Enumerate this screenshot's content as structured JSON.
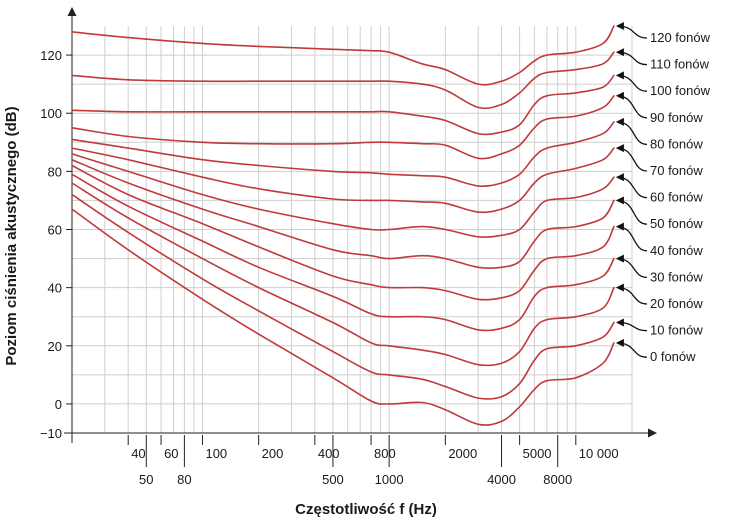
{
  "chart_data": {
    "type": "line",
    "title": "",
    "xlabel": "Częstotliwość f (Hz)",
    "ylabel": "Poziom ciśnienia akustycznego (dB)",
    "xscale": "log",
    "xlim": [
      20,
      20000
    ],
    "ylim": [
      -10,
      130
    ],
    "x_ticks": [
      {
        "value": 40,
        "label": "40",
        "row": "upper"
      },
      {
        "value": 50,
        "label": "50",
        "row": "lower"
      },
      {
        "value": 60,
        "label": "60",
        "row": "upper"
      },
      {
        "value": 80,
        "label": "80",
        "row": "lower"
      },
      {
        "value": 100,
        "label": "100",
        "row": "upper"
      },
      {
        "value": 200,
        "label": "200",
        "row": "upper"
      },
      {
        "value": 400,
        "label": "400",
        "row": "upper"
      },
      {
        "value": 500,
        "label": "500",
        "row": "lower"
      },
      {
        "value": 800,
        "label": "800",
        "row": "upper"
      },
      {
        "value": 1000,
        "label": "1000",
        "row": "lower"
      },
      {
        "value": 2000,
        "label": "2000",
        "row": "upper"
      },
      {
        "value": 4000,
        "label": "4000",
        "row": "lower"
      },
      {
        "value": 5000,
        "label": "5000",
        "row": "upper"
      },
      {
        "value": 8000,
        "label": "8000",
        "row": "lower"
      },
      {
        "value": 10000,
        "label": "10 000",
        "row": "upper"
      }
    ],
    "y_ticks": [
      {
        "value": -10,
        "label": "−10"
      },
      {
        "value": 0,
        "label": "0"
      },
      {
        "value": 20,
        "label": "20"
      },
      {
        "value": 40,
        "label": "40"
      },
      {
        "value": 60,
        "label": "60"
      },
      {
        "value": 80,
        "label": "80"
      },
      {
        "value": 100,
        "label": "100"
      },
      {
        "value": 120,
        "label": "120"
      }
    ],
    "x_gridlines": [
      30,
      40,
      50,
      60,
      70,
      80,
      90,
      100,
      200,
      300,
      400,
      500,
      600,
      700,
      800,
      900,
      1000,
      2000,
      3000,
      4000,
      5000,
      6000,
      7000,
      8000,
      9000,
      10000,
      20000
    ],
    "y_gridlines": [
      -10,
      0,
      10,
      20,
      30,
      40,
      50,
      60,
      70,
      80,
      90,
      100,
      110,
      120
    ],
    "series": [
      {
        "name": "0 fonów",
        "label": "0 fonów",
        "points": [
          [
            20,
            67
          ],
          [
            40,
            53
          ],
          [
            100,
            36
          ],
          [
            200,
            24
          ],
          [
            500,
            9
          ],
          [
            800,
            1
          ],
          [
            1000,
            0
          ],
          [
            1500,
            0.5
          ],
          [
            2000,
            -2
          ],
          [
            3000,
            -7
          ],
          [
            4000,
            -6
          ],
          [
            5000,
            -1
          ],
          [
            6000,
            5
          ],
          [
            7000,
            8
          ],
          [
            10000,
            9
          ],
          [
            14000,
            14
          ],
          [
            16000,
            21
          ]
        ]
      },
      {
        "name": "10 fonów",
        "label": "10 fonów",
        "points": [
          [
            20,
            72
          ],
          [
            40,
            59
          ],
          [
            100,
            43
          ],
          [
            200,
            32
          ],
          [
            500,
            18
          ],
          [
            800,
            11
          ],
          [
            1000,
            10
          ],
          [
            1500,
            8.5
          ],
          [
            2000,
            6
          ],
          [
            3000,
            2
          ],
          [
            4000,
            2.5
          ],
          [
            5000,
            7
          ],
          [
            6000,
            15
          ],
          [
            7000,
            19
          ],
          [
            10000,
            20
          ],
          [
            14000,
            23
          ],
          [
            16000,
            28
          ]
        ]
      },
      {
        "name": "20 fonów",
        "label": "20 fonów",
        "points": [
          [
            20,
            76
          ],
          [
            40,
            64
          ],
          [
            100,
            50
          ],
          [
            200,
            40
          ],
          [
            500,
            28
          ],
          [
            800,
            21
          ],
          [
            1000,
            20
          ],
          [
            1500,
            18.5
          ],
          [
            2000,
            17
          ],
          [
            3000,
            13.5
          ],
          [
            4000,
            14
          ],
          [
            5000,
            18
          ],
          [
            6000,
            26
          ],
          [
            7000,
            29
          ],
          [
            10000,
            30
          ],
          [
            14000,
            33
          ],
          [
            16000,
            40
          ]
        ]
      },
      {
        "name": "30 fonów",
        "label": "30 fonów",
        "points": [
          [
            20,
            79
          ],
          [
            40,
            68
          ],
          [
            100,
            56
          ],
          [
            200,
            47
          ],
          [
            500,
            37
          ],
          [
            800,
            31
          ],
          [
            1000,
            30
          ],
          [
            1500,
            30
          ],
          [
            2000,
            29
          ],
          [
            3000,
            25.5
          ],
          [
            4000,
            26
          ],
          [
            5000,
            29
          ],
          [
            6000,
            37
          ],
          [
            7000,
            40
          ],
          [
            10000,
            41
          ],
          [
            14000,
            44
          ],
          [
            16000,
            50
          ]
        ]
      },
      {
        "name": "40 fonów",
        "label": "40 fonów",
        "points": [
          [
            20,
            82
          ],
          [
            40,
            72
          ],
          [
            100,
            62
          ],
          [
            200,
            54
          ],
          [
            500,
            44
          ],
          [
            800,
            41
          ],
          [
            1000,
            40
          ],
          [
            1500,
            40
          ],
          [
            2000,
            39
          ],
          [
            3000,
            36
          ],
          [
            4000,
            36.5
          ],
          [
            5000,
            39
          ],
          [
            6000,
            46
          ],
          [
            7000,
            50
          ],
          [
            10000,
            51
          ],
          [
            14000,
            54
          ],
          [
            16000,
            61
          ]
        ]
      },
      {
        "name": "50 fonów",
        "label": "50 fonów",
        "points": [
          [
            20,
            84
          ],
          [
            40,
            76
          ],
          [
            100,
            67
          ],
          [
            200,
            61
          ],
          [
            500,
            53
          ],
          [
            800,
            51
          ],
          [
            1000,
            50
          ],
          [
            1500,
            51
          ],
          [
            2000,
            50
          ],
          [
            3000,
            47
          ],
          [
            4000,
            47
          ],
          [
            5000,
            49
          ],
          [
            6000,
            56
          ],
          [
            7000,
            60
          ],
          [
            10000,
            61
          ],
          [
            14000,
            64
          ],
          [
            16000,
            70
          ]
        ]
      },
      {
        "name": "60 fonów",
        "label": "60 fonów",
        "points": [
          [
            20,
            86
          ],
          [
            40,
            80
          ],
          [
            100,
            72
          ],
          [
            200,
            67
          ],
          [
            500,
            62
          ],
          [
            800,
            60
          ],
          [
            1000,
            60
          ],
          [
            1500,
            61
          ],
          [
            2000,
            60
          ],
          [
            3000,
            57.5
          ],
          [
            4000,
            58
          ],
          [
            5000,
            60
          ],
          [
            6000,
            66
          ],
          [
            7000,
            70
          ],
          [
            10000,
            71
          ],
          [
            14000,
            74
          ],
          [
            16000,
            78
          ]
        ]
      },
      {
        "name": "70 fonów",
        "label": "70 fonów",
        "points": [
          [
            20,
            88
          ],
          [
            40,
            84
          ],
          [
            100,
            78
          ],
          [
            200,
            74
          ],
          [
            500,
            70.5
          ],
          [
            800,
            70
          ],
          [
            1000,
            70
          ],
          [
            1500,
            69.5
          ],
          [
            2000,
            69
          ],
          [
            3000,
            66
          ],
          [
            4000,
            67
          ],
          [
            5000,
            70
          ],
          [
            6000,
            76
          ],
          [
            7000,
            79
          ],
          [
            10000,
            81
          ],
          [
            14000,
            84
          ],
          [
            16000,
            88
          ]
        ]
      },
      {
        "name": "80 fonów",
        "label": "80 fonów",
        "points": [
          [
            20,
            91
          ],
          [
            40,
            88
          ],
          [
            100,
            84
          ],
          [
            200,
            82
          ],
          [
            500,
            80
          ],
          [
            800,
            79.5
          ],
          [
            1000,
            79
          ],
          [
            1500,
            78.5
          ],
          [
            2000,
            78
          ],
          [
            3000,
            75
          ],
          [
            4000,
            76
          ],
          [
            5000,
            79
          ],
          [
            6000,
            85
          ],
          [
            7000,
            88
          ],
          [
            10000,
            90
          ],
          [
            14000,
            93
          ],
          [
            16000,
            97
          ]
        ]
      },
      {
        "name": "90 fonów",
        "label": "90 fonów",
        "points": [
          [
            20,
            95
          ],
          [
            40,
            92
          ],
          [
            100,
            90
          ],
          [
            200,
            89.5
          ],
          [
            500,
            89.5
          ],
          [
            800,
            90
          ],
          [
            1000,
            90
          ],
          [
            1500,
            89.5
          ],
          [
            2000,
            89
          ],
          [
            3000,
            84.5
          ],
          [
            4000,
            86
          ],
          [
            5000,
            89
          ],
          [
            6000,
            95
          ],
          [
            7000,
            98
          ],
          [
            10000,
            99
          ],
          [
            14000,
            102
          ],
          [
            16000,
            106
          ]
        ]
      },
      {
        "name": "100 fonów",
        "label": "100 fonów",
        "points": [
          [
            20,
            101
          ],
          [
            40,
            100.5
          ],
          [
            100,
            100.5
          ],
          [
            200,
            100.5
          ],
          [
            500,
            100.5
          ],
          [
            800,
            100.5
          ],
          [
            1000,
            100.5
          ],
          [
            1500,
            99
          ],
          [
            2000,
            97.5
          ],
          [
            3000,
            93
          ],
          [
            4000,
            93.5
          ],
          [
            5000,
            96
          ],
          [
            6000,
            103
          ],
          [
            7000,
            106
          ],
          [
            10000,
            107
          ],
          [
            14000,
            109
          ],
          [
            16000,
            113
          ]
        ]
      },
      {
        "name": "110 fonów",
        "label": "110 fonów",
        "points": [
          [
            20,
            113
          ],
          [
            40,
            111.5
          ],
          [
            100,
            111
          ],
          [
            200,
            111
          ],
          [
            500,
            111
          ],
          [
            800,
            111
          ],
          [
            1000,
            111
          ],
          [
            1500,
            110
          ],
          [
            2000,
            108
          ],
          [
            3000,
            102
          ],
          [
            4000,
            103
          ],
          [
            5000,
            107
          ],
          [
            6000,
            112
          ],
          [
            7000,
            114
          ],
          [
            10000,
            115
          ],
          [
            14000,
            117
          ],
          [
            16000,
            121
          ]
        ]
      },
      {
        "name": "120 fonów",
        "label": "120 fonów",
        "points": [
          [
            20,
            128
          ],
          [
            40,
            126
          ],
          [
            100,
            124
          ],
          [
            200,
            123
          ],
          [
            500,
            122
          ],
          [
            800,
            121.5
          ],
          [
            1000,
            121
          ],
          [
            1500,
            117
          ],
          [
            2000,
            115
          ],
          [
            3000,
            110
          ],
          [
            4000,
            111
          ],
          [
            5000,
            114
          ],
          [
            6000,
            118
          ],
          [
            7000,
            120
          ],
          [
            10000,
            121
          ],
          [
            14000,
            124
          ],
          [
            16000,
            130
          ]
        ]
      }
    ],
    "legend_position": "right",
    "grid": true,
    "colors": {
      "curve": "#c0393b",
      "grid": "#cfcfcf",
      "axis": "#222222",
      "text": "#1a1a1a"
    }
  }
}
